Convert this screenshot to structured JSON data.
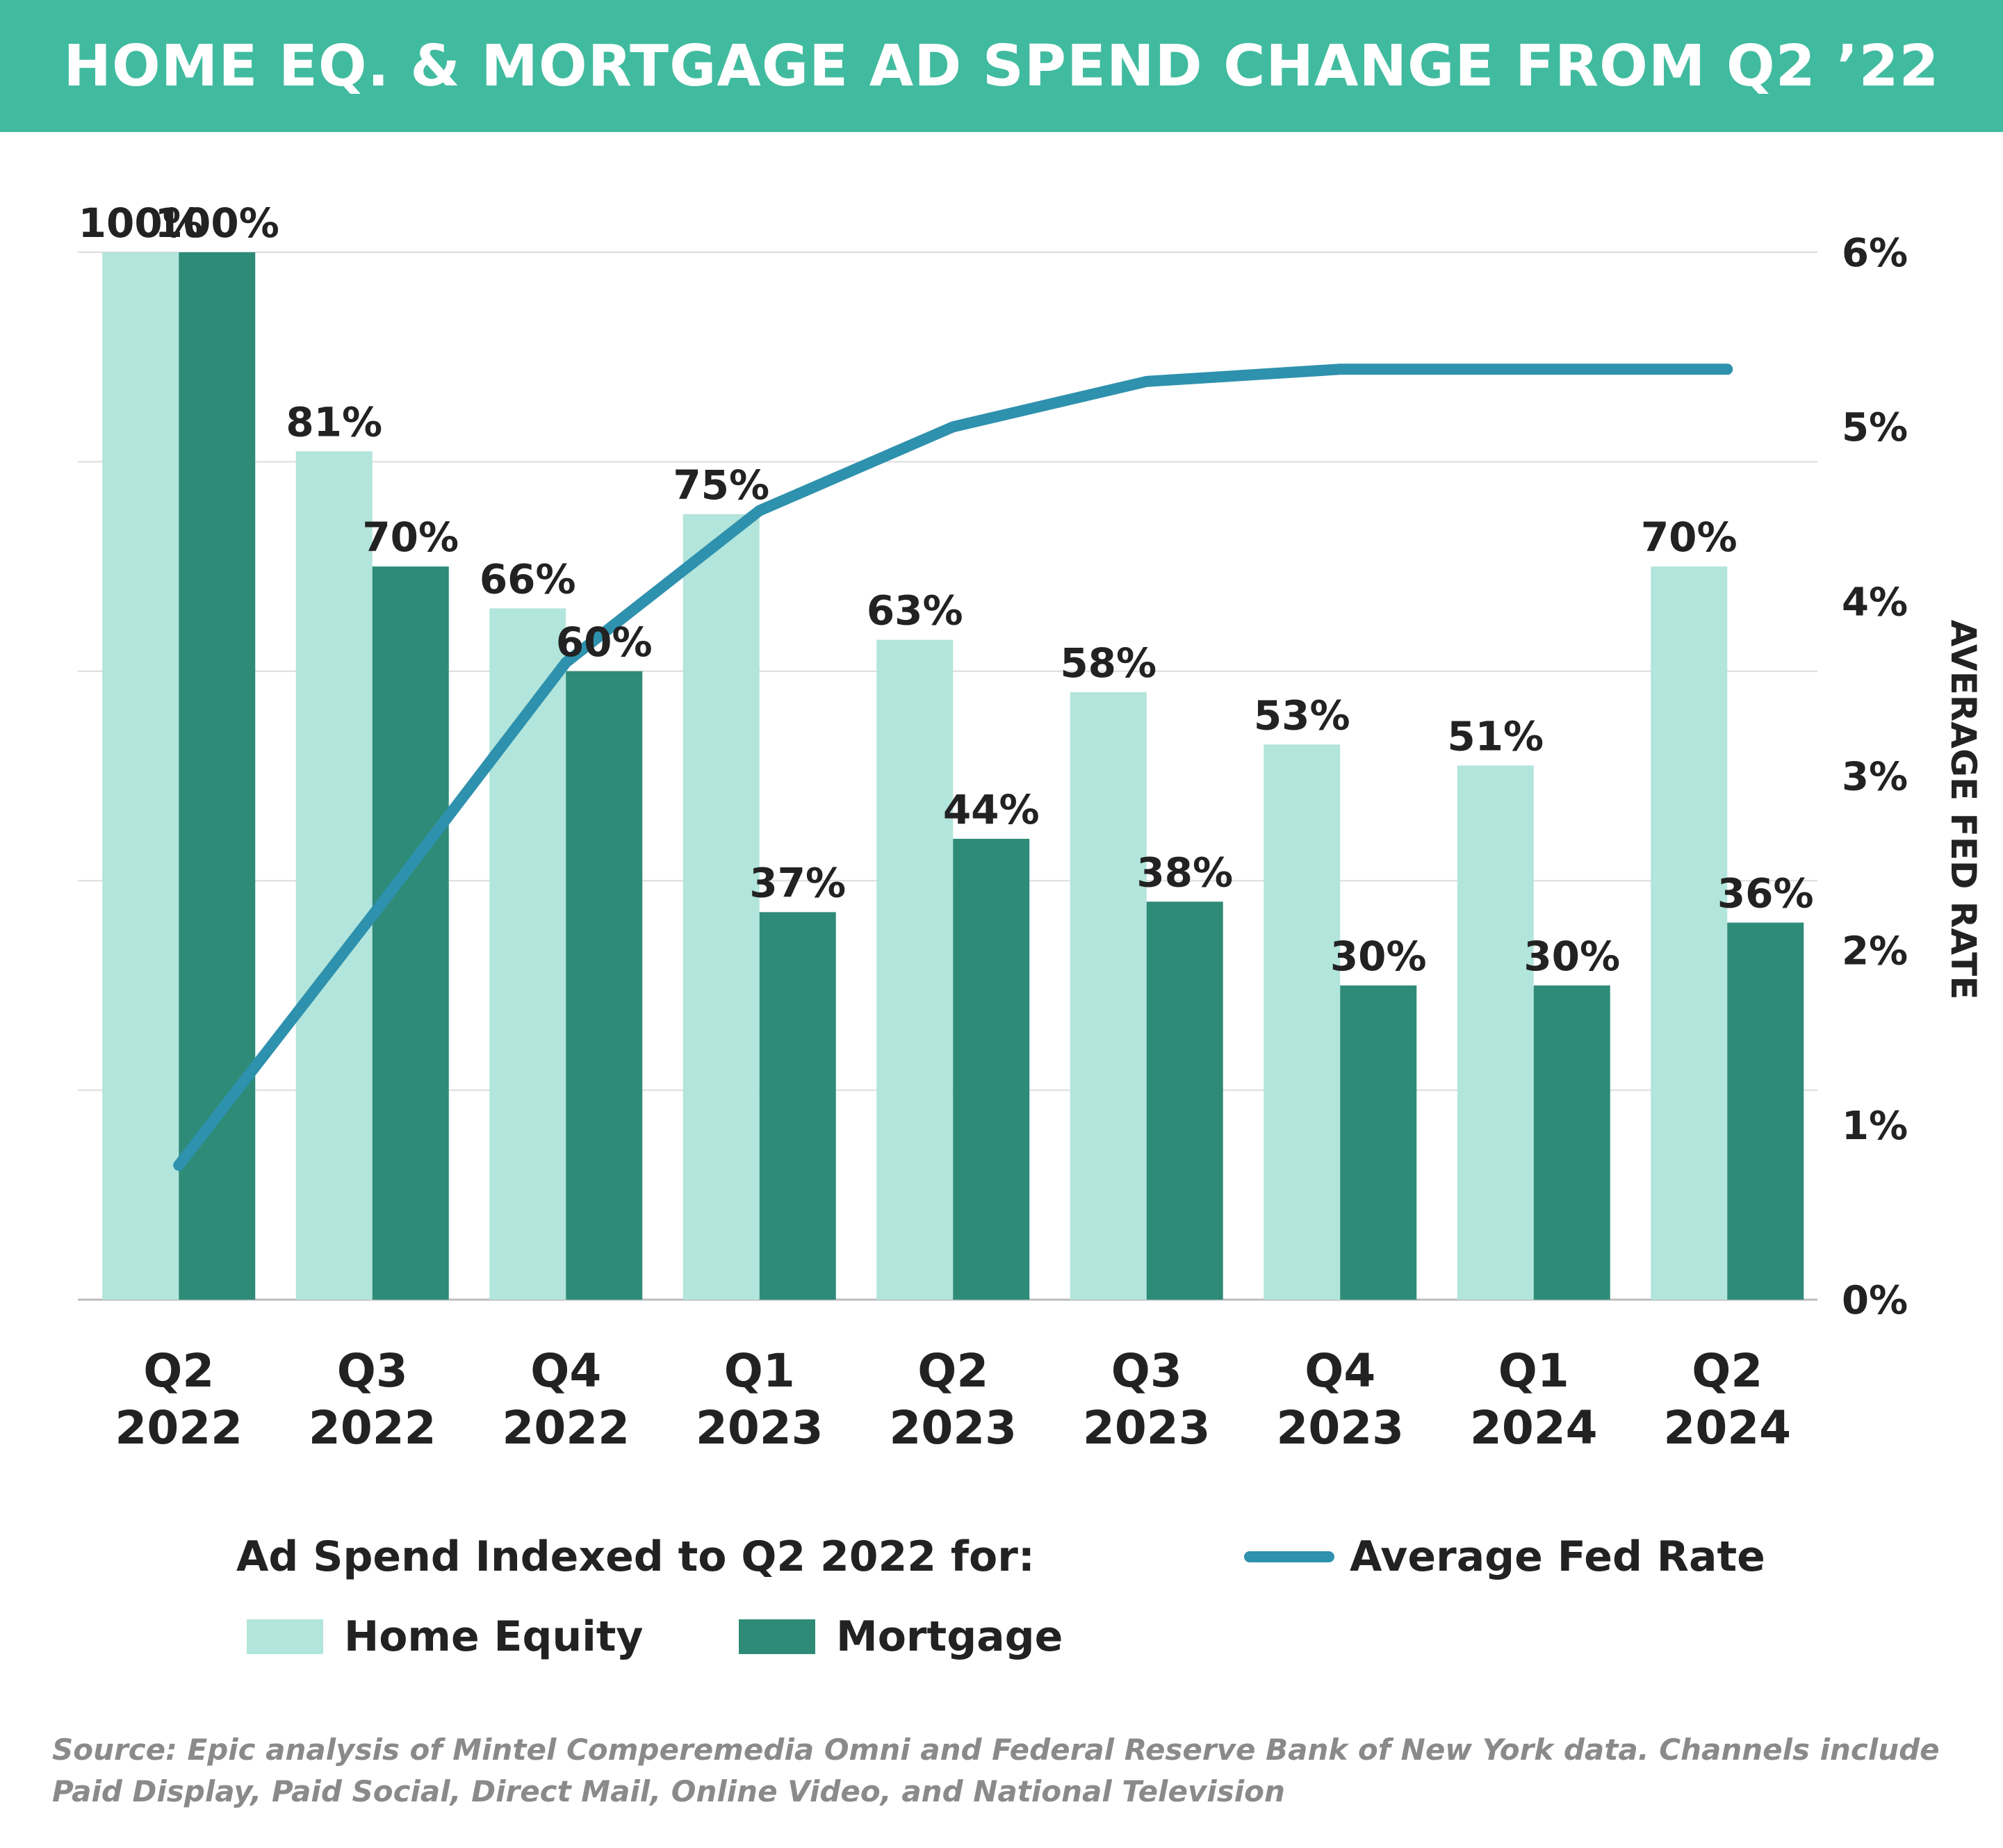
{
  "title": "HOME EQ. & MORTGAGE AD SPEND CHANGE FROM Q2 ’22",
  "chart_data": {
    "type": "bar",
    "categories": [
      [
        "Q2",
        "2022"
      ],
      [
        "Q3",
        "2022"
      ],
      [
        "Q4",
        "2022"
      ],
      [
        "Q1",
        "2023"
      ],
      [
        "Q2",
        "2023"
      ],
      [
        "Q3",
        "2023"
      ],
      [
        "Q4",
        "2023"
      ],
      [
        "Q1",
        "2024"
      ],
      [
        "Q2",
        "2024"
      ]
    ],
    "series": [
      {
        "name": "Home Equity",
        "kind": "bar",
        "axis": "left",
        "color": "#b2e5dc",
        "values": [
          100,
          81,
          66,
          75,
          63,
          58,
          53,
          51,
          70
        ],
        "labels": [
          "100%",
          "81%",
          "66%",
          "75%",
          "63%",
          "58%",
          "53%",
          "51%",
          "70%"
        ]
      },
      {
        "name": "Mortgage",
        "kind": "bar",
        "axis": "left",
        "color": "#2e8b78",
        "values": [
          100,
          70,
          60,
          37,
          44,
          38,
          30,
          30,
          36
        ],
        "labels": [
          "100%",
          "70%",
          "60%",
          "37%",
          "44%",
          "38%",
          "30%",
          "30%",
          "36%"
        ]
      },
      {
        "name": "Average Fed Rate",
        "kind": "line",
        "axis": "right",
        "color": "#2e91ad",
        "values": [
          0.77,
          2.2,
          3.65,
          4.52,
          5.0,
          5.26,
          5.33,
          5.33,
          5.33
        ]
      }
    ],
    "left_axis": {
      "ylim": [
        0,
        100
      ],
      "gridlines": [
        0,
        20,
        40,
        60,
        80,
        100
      ]
    },
    "right_axis": {
      "ylabel": "AVERAGE FED RATE",
      "ylim": [
        0,
        6
      ],
      "ticks": [
        "0%",
        "1%",
        "2%",
        "3%",
        "4%",
        "5%",
        "6%"
      ]
    },
    "grid": true
  },
  "legend": {
    "title": "Ad Spend Indexed to Q2 2022 for:",
    "home_equity": "Home Equity",
    "mortgage": "Mortgage",
    "fed_rate": "Average Fed Rate"
  },
  "source": "Source: Epic analysis of Mintel Comperemedia Omni and Federal Reserve Bank of New York data. Channels include Paid Display, Paid Social, Direct Mail, Online Video, and National Television"
}
